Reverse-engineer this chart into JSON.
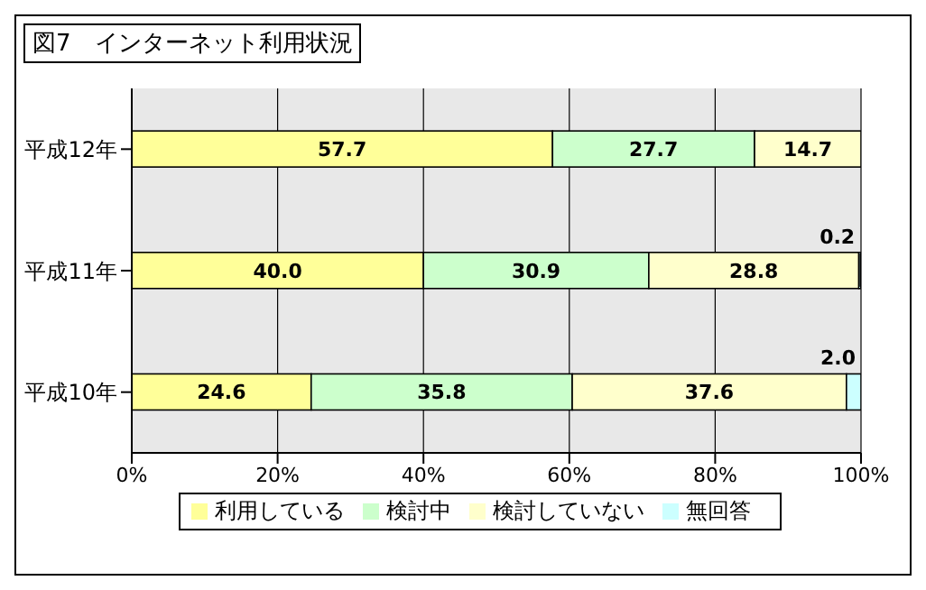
{
  "chart_data": {
    "type": "bar",
    "orientation": "horizontal",
    "stacked": true,
    "title": "図7　インターネット利用状況",
    "categories": [
      "平成12年",
      "平成11年",
      "平成10年"
    ],
    "series": [
      {
        "name": "利用している",
        "color": "#ffff99",
        "values": [
          57.7,
          40.0,
          24.6
        ],
        "value_labels": [
          "57.7",
          "40.0",
          "24.6"
        ]
      },
      {
        "name": "検討中",
        "color": "#ccffcc",
        "values": [
          27.7,
          30.9,
          35.8
        ],
        "value_labels": [
          "27.7",
          "30.9",
          "35.8"
        ]
      },
      {
        "name": "検討していない",
        "color": "#ffffcc",
        "values": [
          14.7,
          28.8,
          37.6
        ],
        "value_labels": [
          "14.7",
          "28.8",
          "37.6"
        ]
      },
      {
        "name": "無回答",
        "color": "#ccffff",
        "values": [
          null,
          0.2,
          2.0
        ],
        "value_labels": [
          null,
          "0.2",
          "2.0"
        ]
      }
    ],
    "xlim": [
      0,
      100
    ],
    "xticks": [
      {
        "value": 0,
        "label": "0%"
      },
      {
        "value": 20,
        "label": "20%"
      },
      {
        "value": 40,
        "label": "40%"
      },
      {
        "value": 60,
        "label": "60%"
      },
      {
        "value": 80,
        "label": "80%"
      },
      {
        "value": 100,
        "label": "100%"
      }
    ],
    "grid": "x",
    "legend": "bottom"
  }
}
